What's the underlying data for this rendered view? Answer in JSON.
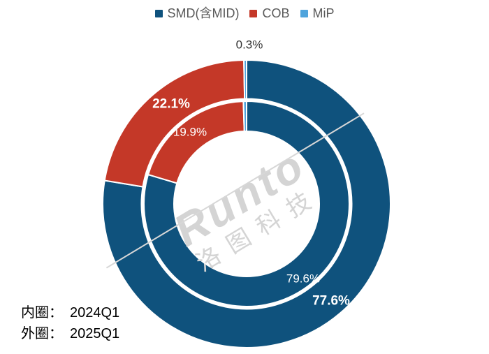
{
  "chart_data": {
    "type": "donut",
    "categories": [
      "SMD(含MID)",
      "COB",
      "MiP"
    ],
    "colors": [
      "#0F527D",
      "#C43828",
      "#4FA4DC"
    ],
    "legend_position": "top",
    "rings": [
      {
        "name": "2025Q1",
        "position": "outer",
        "values": [
          77.6,
          22.1,
          0.3
        ]
      },
      {
        "name": "2024Q1",
        "position": "inner",
        "values": [
          79.6,
          19.9,
          0.5
        ]
      }
    ],
    "labels": {
      "smd_outer": "77.6%",
      "smd_inner": "79.6%",
      "cob_outer": "22.1%",
      "cob_inner": "19.9%",
      "mip_outer": "0.3%"
    }
  },
  "ring_key": {
    "rows": [
      {
        "label": "内圈：",
        "value": "2024Q1"
      },
      {
        "label": "外圈：",
        "value": "2025Q1"
      }
    ]
  },
  "watermark": {
    "brand": "Runto",
    "company": "洛图科技"
  }
}
